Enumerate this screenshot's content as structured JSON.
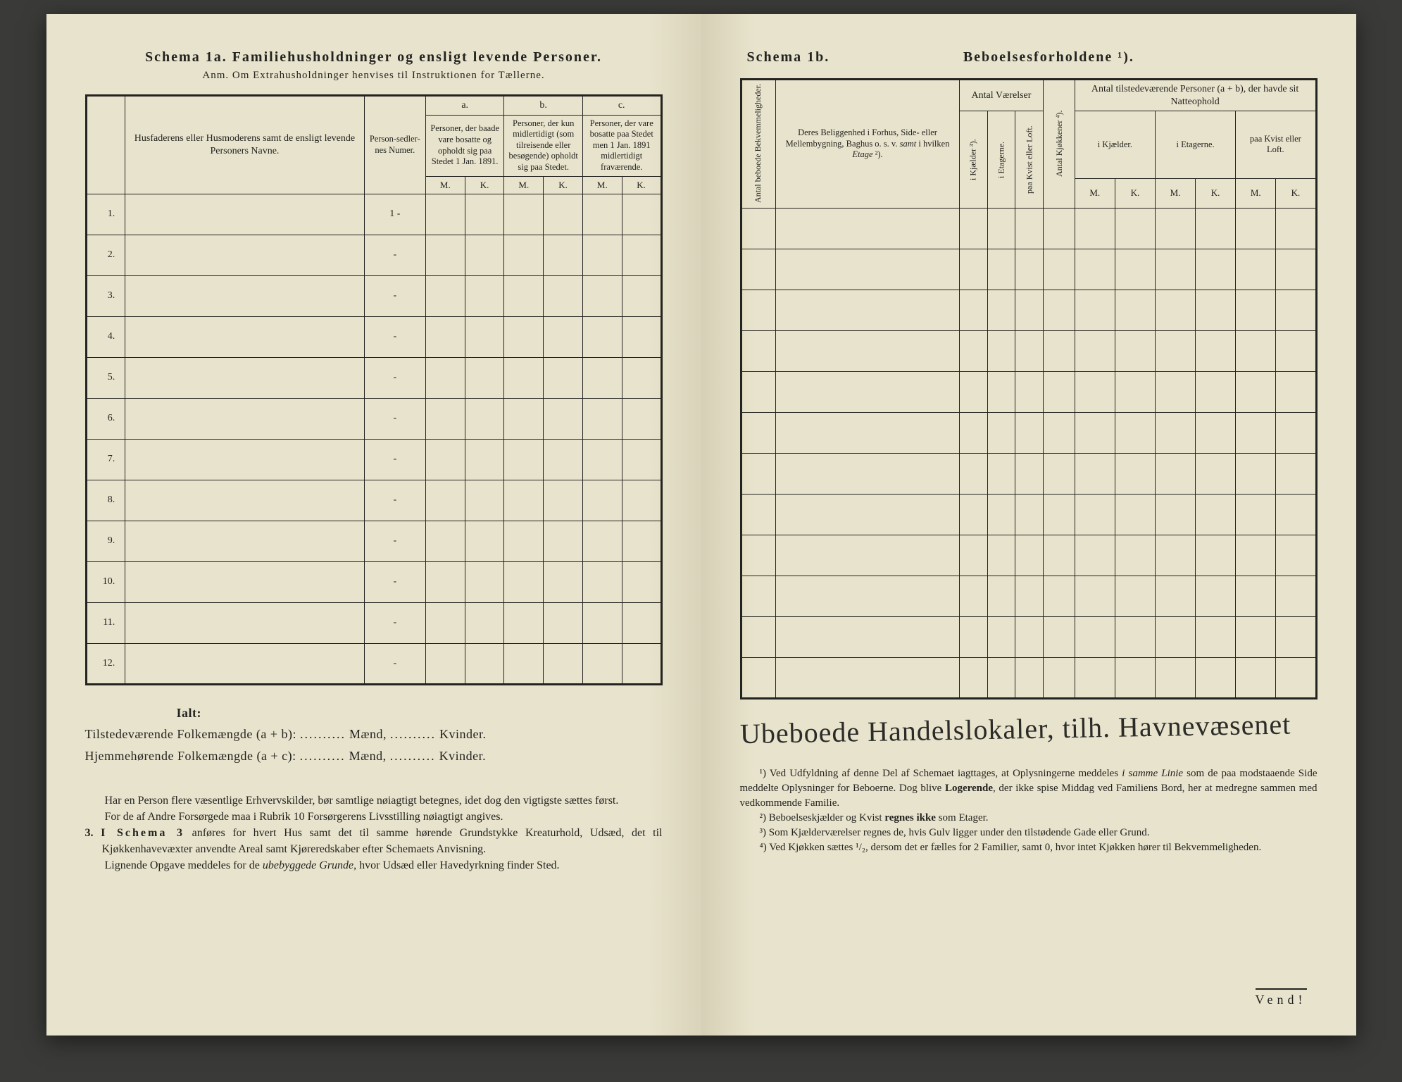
{
  "left": {
    "title": "Schema 1a.  Familiehusholdninger og ensligt levende Personer.",
    "subtitle": "Anm. Om Extrahusholdninger henvises til Instruktionen for Tællerne.",
    "col_names": "Husfaderens eller Husmoderens samt de ensligt levende Personers Navne.",
    "col_numer": "Person-sedler-nes Numer.",
    "group_a": "a.",
    "group_b": "b.",
    "group_c": "c.",
    "desc_a": "Personer, der baade vare bosatte og opholdt sig paa Stedet 1 Jan. 1891.",
    "desc_b": "Personer, der kun midlertidigt (som tilreisende eller besøgende) opholdt sig paa Stedet.",
    "desc_c": "Personer, der vare bosatte paa Stedet men 1 Jan. 1891 midlertidigt fraværende.",
    "M": "M.",
    "K": "K.",
    "rows": [
      "1.",
      "2.",
      "3.",
      "4.",
      "5.",
      "6.",
      "7.",
      "8.",
      "9.",
      "10.",
      "11.",
      "12."
    ],
    "first_numer": "1 -",
    "dash": "-",
    "ialt": "Ialt:",
    "line1a": "Tilstedeværende Folkemængde (a + b): ",
    "line1b": " Mænd, ",
    "line1c": " Kvinder.",
    "line2a": "Hjemmehørende Folkemængde (a + c): ",
    "notes_p1": "Har en Person flere væsentlige Erhvervskilder, bør samtlige nøiagtigt betegnes, idet dog den vigtigste sættes først.",
    "notes_p2": "For de af Andre Forsørgede maa i Rubrik 10 Forsørgerens Livsstilling nøiagtigt angives.",
    "notes_p3_num": "3.",
    "notes_p3": "I Schema 3 anføres for hvert Hus samt det til samme hørende Grundstykke Kreaturhold, Udsæd, det til Kjøkkenhavevæxter anvendte Areal samt Kjøreredskaber efter Schemaets Anvisning.",
    "notes_p4": "Lignende Opgave meddeles for de ubebyggede Grunde, hvor Udsæd eller Havedyrkning finder Sted."
  },
  "right": {
    "title_left": "Schema 1b.",
    "title_right": "Beboelsesforholdene ¹).",
    "col_antal_beboede": "Antal beboede Bekvemmeligheder.",
    "col_beliggenhed": "Deres Beliggenhed i Forhus, Side- eller Mellembygning, Baghus o. s. v. samt i hvilken Etage ²).",
    "grp_vaerelser": "Antal Værelser",
    "col_kjaelder": "i Kjælder ³).",
    "col_etagerne": "i Etagerne.",
    "col_kvist": "paa Kvist eller Loft.",
    "col_kjokken": "Antal Kjøkkener ⁴).",
    "grp_tilstede": "Antal tilstedeværende Personer (a + b), der havde sit Natteophold",
    "sub_kjaelder": "i Kjælder.",
    "sub_etagerne": "i Etagerne.",
    "sub_kvist": "paa Kvist eller Loft.",
    "M": "M.",
    "K": "K.",
    "handwriting": "Ubeboede Handelslokaler, tilh. Havnevæsenet",
    "fn1": "¹) Ved Udfyldning af denne Del af Schemaet iagttages, at Oplysningerne meddeles i samme Linie som de paa modstaaende Side meddelte Oplysninger for Beboerne. Dog blive Logerende, der ikke spise Middag ved Familiens Bord, her at medregne sammen med vedkommende Familie.",
    "fn2": "²) Beboelseskjælder og Kvist regnes ikke som Etager.",
    "fn3": "³) Som Kjælderværelser regnes de, hvis Gulv ligger under den tilstødende Gade eller Grund.",
    "fn4": "⁴) Ved Kjøkken sættes ¹/₂, dersom det er fælles for 2 Familier, samt 0, hvor intet Kjøkken hører til Bekvemmeligheden.",
    "vend": "Vend!"
  },
  "colors": {
    "paper": "#e8e3cc",
    "ink": "#232320"
  }
}
